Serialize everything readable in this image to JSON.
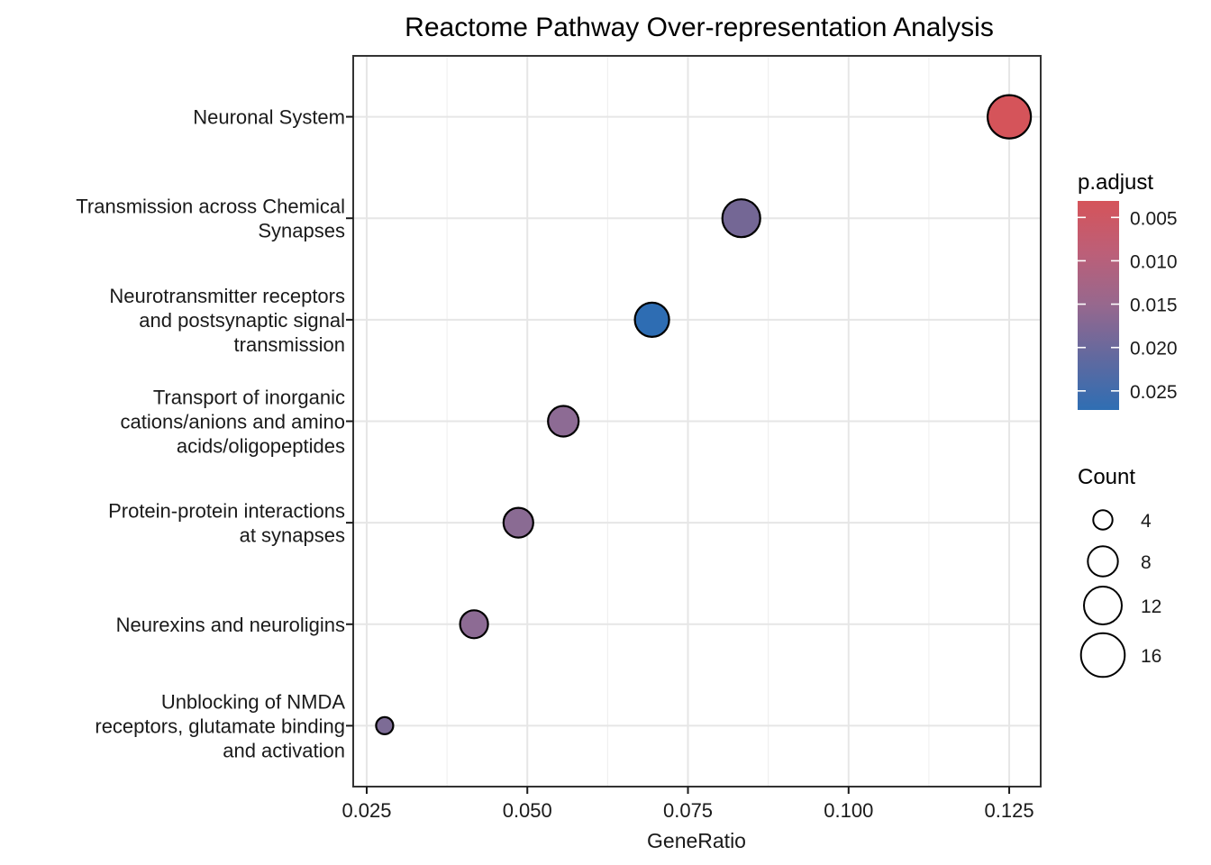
{
  "chart_data": {
    "type": "scatter",
    "subtype": "dotplot-bubble",
    "title": "Reactome Pathway Over-representation Analysis",
    "xlabel": "GeneRatio",
    "ylabel": "",
    "xlim": [
      0.0229,
      0.1299
    ],
    "x_ticks": {
      "values": [
        0.025,
        0.05,
        0.075,
        0.1,
        0.125
      ],
      "labels": [
        "0.025",
        "0.050",
        "0.075",
        "0.100",
        "0.125"
      ]
    },
    "x_minor_gridlines": [
      0.0375,
      0.0625,
      0.0875,
      0.1125
    ],
    "grid": "major+minor vertical, major horizontal per category, light gray on white (theme_bw)",
    "pathways": [
      {
        "label": "Neuronal System",
        "label_lines": [
          "Neuronal System"
        ],
        "gene_ratio": 0.125,
        "count": 18,
        "p_adjust": 0.003,
        "color": "#D5545A",
        "radius_px": 24
      },
      {
        "label": "Transmission across Chemical Synapses",
        "label_lines": [
          "Transmission across Chemical",
          "Synapses"
        ],
        "gene_ratio": 0.0833,
        "count": 12,
        "p_adjust": 0.019,
        "color": "#746795",
        "radius_px": 21
      },
      {
        "label": "Neurotransmitter receptors and postsynaptic signal transmission",
        "label_lines": [
          "Neurotransmitter receptors",
          "and postsynaptic signal",
          "transmission"
        ],
        "gene_ratio": 0.0694,
        "count": 10,
        "p_adjust": 0.027,
        "color": "#2E6DB3",
        "radius_px": 19
      },
      {
        "label": "Transport of inorganic cations/anions and amino acids/oligopeptides",
        "label_lines": [
          "Transport of inorganic",
          "cations/anions and amino",
          "acids/oligopeptides"
        ],
        "gene_ratio": 0.0556,
        "count": 8,
        "p_adjust": 0.016,
        "color": "#8D6B94",
        "radius_px": 17
      },
      {
        "label": "Protein-protein interactions at synapses",
        "label_lines": [
          "Protein-protein interactions",
          "at synapses"
        ],
        "gene_ratio": 0.0486,
        "count": 7,
        "p_adjust": 0.016,
        "color": "#8A6B93",
        "radius_px": 16.5
      },
      {
        "label": "Neurexins and neuroligins",
        "label_lines": [
          "Neurexins and neuroligins"
        ],
        "gene_ratio": 0.0417,
        "count": 6,
        "p_adjust": 0.016,
        "color": "#8D6B94",
        "radius_px": 15.5
      },
      {
        "label": "Unblocking of NMDA receptors, glutamate binding and activation",
        "label_lines": [
          "Unblocking of NMDA",
          "receptors, glutamate binding",
          "and activation"
        ],
        "gene_ratio": 0.0278,
        "count": 4,
        "p_adjust": 0.018,
        "color": "#7D6C96",
        "radius_px": 9.5
      }
    ],
    "legend_p_adjust": {
      "title": "p.adjust",
      "domain": [
        0.0031,
        0.0272
      ],
      "ticks": {
        "values": [
          0.005,
          0.01,
          0.015,
          0.02,
          0.025
        ],
        "labels": [
          "0.005",
          "0.010",
          "0.015",
          "0.020",
          "0.025"
        ]
      },
      "gradient": [
        {
          "offset": 0.0,
          "color": "#D5545A"
        },
        {
          "offset": 0.25,
          "color": "#BC5F78"
        },
        {
          "offset": 0.5,
          "color": "#96688E"
        },
        {
          "offset": 0.75,
          "color": "#61699F"
        },
        {
          "offset": 1.0,
          "color": "#2F6EB3"
        }
      ]
    },
    "legend_count": {
      "title": "Count",
      "items": [
        {
          "value": "4",
          "radius_px": 10.7
        },
        {
          "value": "8",
          "radius_px": 16.7
        },
        {
          "value": "12",
          "radius_px": 21
        },
        {
          "value": "16",
          "radius_px": 24.3
        }
      ]
    },
    "colors": {
      "background": "#FFFFFF",
      "grid_major": "#E6E6E6",
      "grid_minor": "#F0F0F0",
      "panel_border": "#333333",
      "point_stroke": "#000000",
      "tick_color": "#1A1A1A",
      "legend_circle_stroke": "#000000"
    }
  }
}
